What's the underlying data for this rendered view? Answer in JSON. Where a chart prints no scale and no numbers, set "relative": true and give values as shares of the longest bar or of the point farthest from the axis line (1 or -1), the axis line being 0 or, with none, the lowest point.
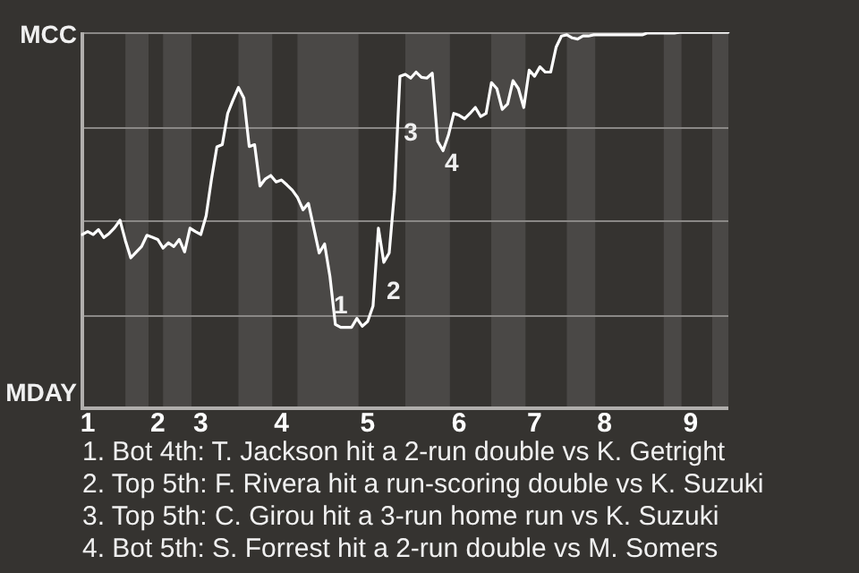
{
  "chart_data": {
    "type": "line",
    "relative": true,
    "categories": [
      null,
      "1",
      null,
      null,
      null,
      null,
      null,
      null,
      null,
      null,
      null,
      null,
      null,
      null,
      "2",
      null,
      null,
      null,
      null,
      null,
      null,
      null,
      "3",
      null,
      null,
      null,
      null,
      null,
      null,
      null,
      null,
      null,
      null,
      null,
      null,
      null,
      null,
      "4",
      null,
      null,
      null,
      null,
      null,
      null,
      null,
      null,
      null,
      null,
      null,
      null,
      null,
      null,
      null,
      "5",
      null,
      null,
      null,
      null,
      null,
      null,
      null,
      null,
      null,
      null,
      null,
      null,
      null,
      null,
      null,
      null,
      "6",
      null,
      null,
      null,
      null,
      null,
      null,
      null,
      null,
      null,
      null,
      null,
      null,
      null,
      "7",
      null,
      null,
      null,
      null,
      null,
      null,
      null,
      null,
      null,
      null,
      null,
      null,
      "8",
      null,
      null,
      null,
      null,
      null,
      null,
      null,
      null,
      null,
      null,
      null,
      null,
      null,
      null,
      null,
      "9",
      null,
      null,
      null,
      null,
      null,
      null,
      null
    ],
    "series": [
      {
        "color": "#ffffff",
        "values": [
          0.462,
          0.47,
          0.462,
          0.475,
          0.454,
          0.465,
          0.48,
          0.5,
          0.446,
          0.4,
          0.415,
          0.43,
          0.46,
          0.455,
          0.449,
          0.426,
          0.44,
          0.43,
          0.449,
          0.416,
          0.479,
          0.47,
          0.462,
          0.512,
          0.61,
          0.695,
          0.701,
          0.784,
          0.82,
          0.853,
          0.825,
          0.696,
          0.701,
          0.591,
          0.61,
          0.619,
          0.602,
          0.607,
          0.594,
          0.58,
          0.56,
          0.528,
          0.545,
          0.479,
          0.413,
          0.437,
          0.35,
          0.223,
          0.215,
          0.215,
          0.215,
          0.239,
          0.218,
          0.231,
          0.272,
          0.479,
          0.388,
          0.413,
          0.578,
          0.883,
          0.888,
          0.878,
          0.894,
          0.88,
          0.878,
          0.891,
          0.71,
          0.685,
          0.726,
          0.784,
          0.779,
          0.77,
          0.784,
          0.8,
          0.776,
          0.784,
          0.866,
          0.85,
          0.795,
          0.809,
          0.871,
          0.85,
          0.8,
          0.899,
          0.883,
          0.908,
          0.894,
          0.894,
          0.96,
          0.99,
          0.993,
          0.985,
          0.982,
          0.99,
          0.99,
          0.993,
          0.993,
          0.993,
          0.993,
          0.993,
          0.993,
          0.993,
          0.993,
          0.993,
          0.993,
          0.998,
          0.998,
          0.998,
          0.998,
          0.998,
          0.998,
          1,
          1,
          1,
          1,
          1,
          1,
          1,
          1,
          1,
          1
        ]
      }
    ],
    "grid": "y",
    "marker": "none",
    "line_style": "solid",
    "legend": false,
    "annotations": [
      "MCC",
      "MDAY",
      "1",
      "2",
      "3",
      "4",
      "1. Bot 4th: T. Jackson hit a 2-run double vs K. Getright",
      "2. Top 5th: F. Rivera hit a run-scoring double vs K. Suzuki",
      "3. Top 5th: C. Girou hit a 3-run home run vs K. Suzuki",
      "4. Bot 5th: S. Forrest hit a 2-run double vs M. Somers"
    ]
  }
}
